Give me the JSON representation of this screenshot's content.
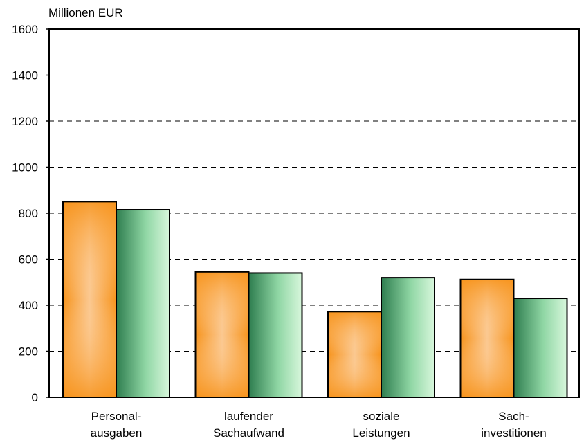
{
  "chart_data": {
    "type": "bar",
    "ylabel": "Millionen EUR",
    "ylim": [
      0,
      1600
    ],
    "yticks": [
      0,
      200,
      400,
      600,
      800,
      1000,
      1200,
      1400,
      1600
    ],
    "grid": true,
    "categories": [
      [
        "Personal-",
        "ausgaben"
      ],
      [
        "laufender",
        "Sachaufwand"
      ],
      [
        "soziale",
        "Leistungen"
      ],
      [
        "Sach-",
        "investitionen"
      ]
    ],
    "series": [
      {
        "values": [
          850,
          545,
          372,
          512
        ],
        "color": "#f7941d"
      },
      {
        "values": [
          815,
          540,
          520,
          430
        ],
        "color": "#2e8b57"
      }
    ]
  }
}
